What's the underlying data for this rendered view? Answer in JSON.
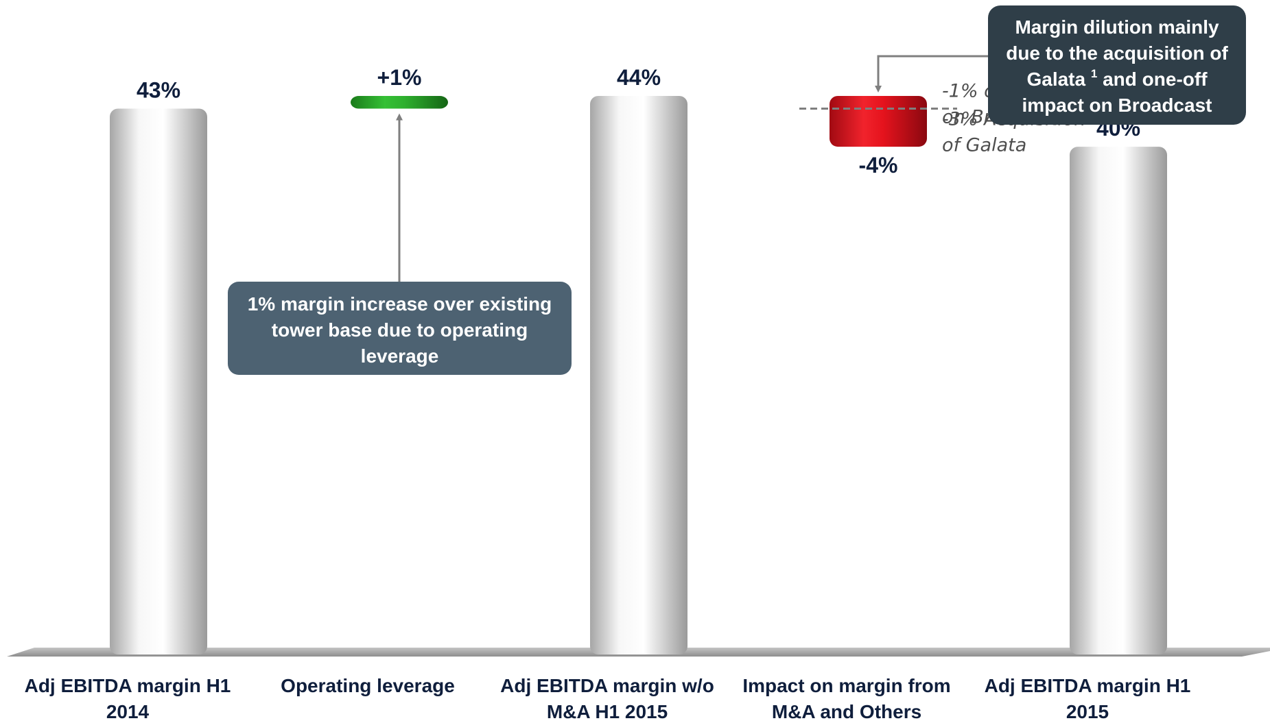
{
  "chart_data": {
    "type": "bar",
    "subtype": "waterfall",
    "categories": [
      [
        "Adj EBITDA margin H1",
        "2014"
      ],
      [
        "Operating leverage"
      ],
      [
        "Adj EBITDA margin w/o",
        "M&A H1 2015"
      ],
      [
        "Impact on margin from",
        "M&A and Others"
      ],
      [
        "Adj EBITDA margin H1",
        "2015"
      ]
    ],
    "values": [
      43,
      1,
      44,
      -4,
      40
    ],
    "value_labels": [
      "43%",
      "+1%",
      "44%",
      "-4%",
      "40%"
    ],
    "bar_kinds": [
      "total",
      "increase",
      "total",
      "decrease",
      "total"
    ],
    "ylim": [
      0,
      44
    ],
    "colors": {
      "total": "#d9d9d9",
      "increase": "#2eaa2e",
      "decrease": "#e0121e",
      "label": "#0f1e3c",
      "callout_bg": "#4d6272",
      "callout_bg_dark": "#2f3e48",
      "arrow": "#7f7f7f",
      "note": "#4e4e4e"
    },
    "decrease_split": {
      "value": -1,
      "dashed_line": true
    },
    "annotations": {
      "split_notes": [
        [
          "-1% one-off impact",
          "on Broadcast"
        ],
        [
          "-3% Acquisition",
          "of Galata"
        ]
      ],
      "callout_increase": [
        "1% margin increase over existing",
        "tower base due to operating",
        "leverage"
      ],
      "callout_decrease": {
        "lines": [
          "Margin dilution mainly",
          "due to  the acquisition of"
        ],
        "line3_before": "Galata ",
        "line3_sup": "1",
        "line3_after": " and one-off",
        "line4": "impact on Broadcast"
      }
    }
  }
}
